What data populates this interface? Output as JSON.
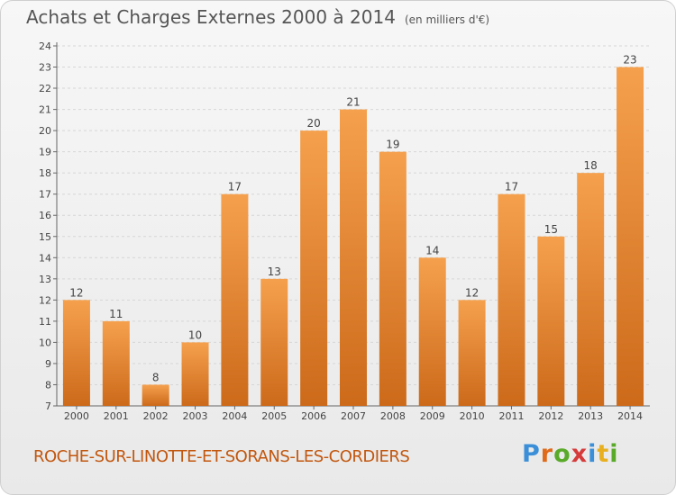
{
  "header": {
    "title": "Achats et Charges Externes 2000 à 2014",
    "unit": "(en milliers d'€)"
  },
  "footer": {
    "commune": "ROCHE-SUR-LINOTTE-ET-SORANS-LES-CORDIERS",
    "logo": "Proxiti"
  },
  "colors": {
    "bar_light": "#f5a04d",
    "bar_dark": "#cc6a1a",
    "commune_text": "#c2570f",
    "logo_letters": [
      "#3a8fd8",
      "#e06a1a",
      "#5aaa2a",
      "#d63a3a",
      "#3a8fd8",
      "#e8b020",
      "#5aaa2a"
    ]
  },
  "chart_data": {
    "type": "bar",
    "title": "Achats et Charges Externes 2000 à 2014",
    "subtitle": "(en milliers d'€)",
    "categories": [
      "2000",
      "2001",
      "2002",
      "2003",
      "2004",
      "2005",
      "2006",
      "2007",
      "2008",
      "2009",
      "2010",
      "2011",
      "2012",
      "2013",
      "2014"
    ],
    "values": [
      12,
      11,
      8,
      10,
      17,
      13,
      20,
      21,
      19,
      14,
      12,
      17,
      15,
      18,
      23
    ],
    "ylim": [
      7,
      24
    ],
    "yticks": [
      7,
      8,
      9,
      10,
      11,
      12,
      13,
      14,
      15,
      16,
      17,
      18,
      19,
      20,
      21,
      22,
      23,
      24
    ],
    "grid": true,
    "data_labels": true
  }
}
